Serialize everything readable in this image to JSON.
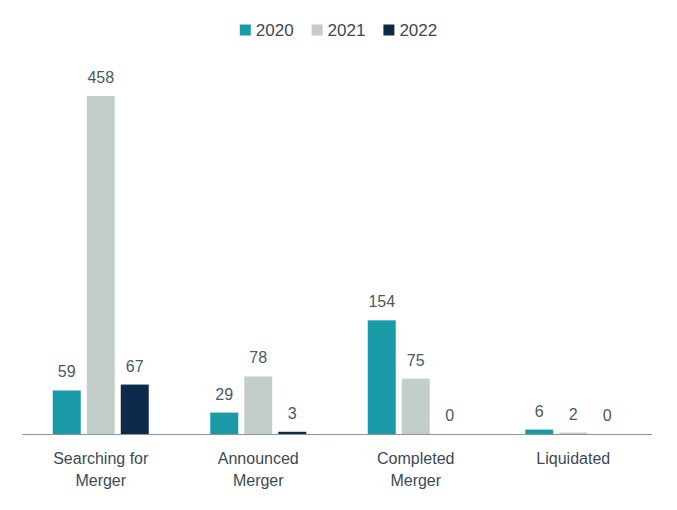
{
  "chart_data": {
    "type": "bar",
    "categories": [
      "Searching for Merger",
      "Announced Merger",
      "Completed Merger",
      "Liquidated"
    ],
    "series": [
      {
        "name": "2020",
        "color": "#1a9aa6",
        "values": [
          59,
          29,
          154,
          6
        ]
      },
      {
        "name": "2021",
        "color": "#c4cec9",
        "values": [
          458,
          78,
          75,
          2
        ]
      },
      {
        "name": "2022",
        "color": "#0e2a4a",
        "values": [
          67,
          3,
          0,
          0
        ]
      }
    ],
    "ylim": [
      0,
      458
    ],
    "data_labels": true,
    "tick_labels": "x",
    "legend": "top",
    "grid": false
  }
}
